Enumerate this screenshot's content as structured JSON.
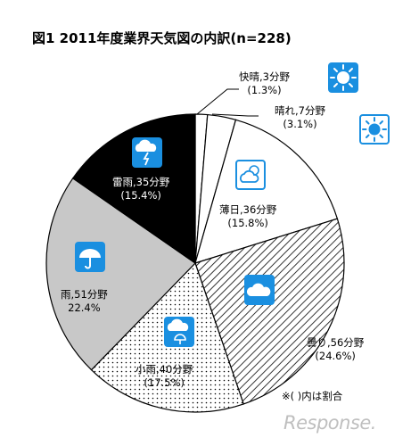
{
  "chart_data": {
    "type": "pie",
    "title": "図1 2011年度業界天気図の内訳(n=228)",
    "slices": [
      {
        "label": "快晴,3分野",
        "value": 3,
        "percent": "(1.3%)",
        "fill": "#ffffff",
        "icon": "sun-icon"
      },
      {
        "label": "晴れ,7分野",
        "value": 7,
        "percent": "(3.1%)",
        "fill": "#ffffff",
        "icon": "sun-icon"
      },
      {
        "label": "薄日,36分野",
        "value": 36,
        "percent": "(15.8%)",
        "fill": "#ffffff",
        "icon": "partly-sunny-icon"
      },
      {
        "label": "曇り,56分野",
        "value": 56,
        "percent": "(24.6%)",
        "fill": "hatch",
        "icon": "cloud-icon"
      },
      {
        "label": "小雨,40分野",
        "value": 40,
        "percent": "(17.5%)",
        "fill": "dots",
        "icon": "light-rain-icon"
      },
      {
        "label": "雨,51分野",
        "value": 51,
        "percent": "22.4%",
        "fill": "#c8c8c8",
        "icon": "umbrella-icon"
      },
      {
        "label": "雷雨,35分野",
        "value": 35,
        "percent": "(15.4%)",
        "fill": "#000000",
        "icon": "thunderstorm-icon"
      }
    ],
    "note": "※(  )内は割合"
  },
  "watermark": "Response."
}
